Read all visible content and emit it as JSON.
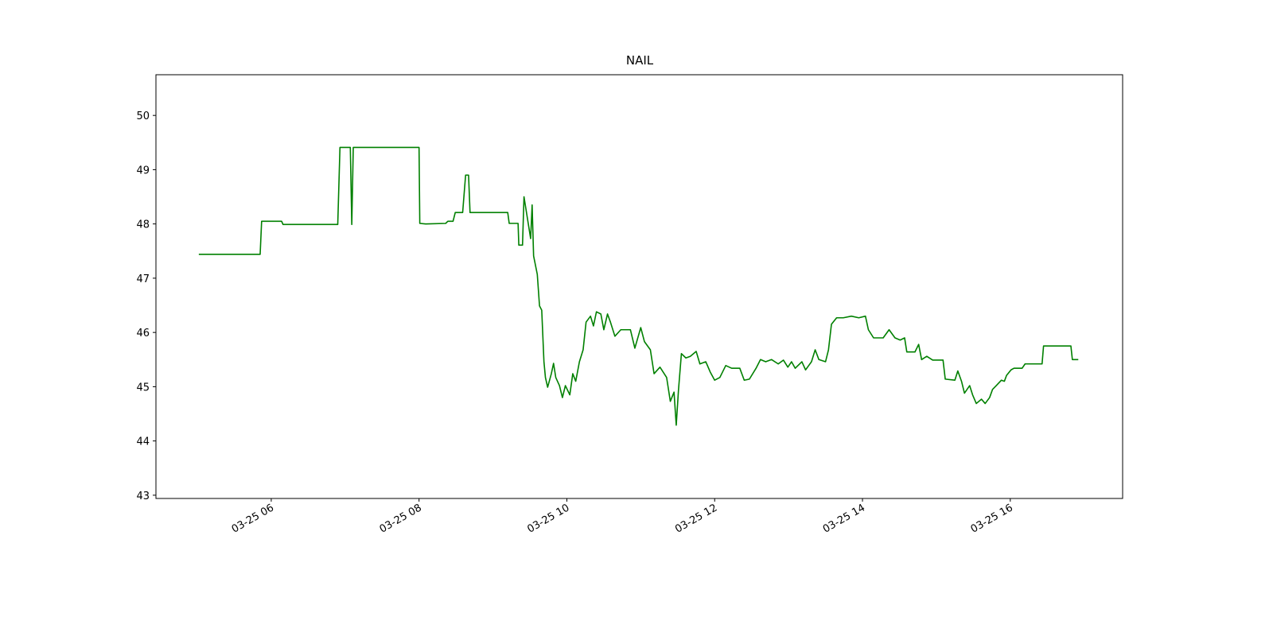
{
  "chart_data": {
    "type": "line",
    "title": "NAIL",
    "color": "#008000",
    "x": [
      5.02,
      5.85,
      5.87,
      6.14,
      6.16,
      6.9,
      6.93,
      7.07,
      7.09,
      7.11,
      8.0,
      8.01,
      8.09,
      8.36,
      8.39,
      8.46,
      8.49,
      8.59,
      8.63,
      8.67,
      8.69,
      9.2,
      9.22,
      9.34,
      9.35,
      9.4,
      9.42,
      9.51,
      9.53,
      9.55,
      9.6,
      9.63,
      9.66,
      9.69,
      9.71,
      9.74,
      9.79,
      9.82,
      9.85,
      9.9,
      9.94,
      9.98,
      10.04,
      10.08,
      10.12,
      10.17,
      10.22,
      10.26,
      10.32,
      10.36,
      10.4,
      10.46,
      10.5,
      10.55,
      10.59,
      10.65,
      10.73,
      10.86,
      10.92,
      11.0,
      11.05,
      11.13,
      11.18,
      11.26,
      11.35,
      11.4,
      11.45,
      11.48,
      11.51,
      11.55,
      11.61,
      11.67,
      11.75,
      11.8,
      11.88,
      11.94,
      12.0,
      12.07,
      12.15,
      12.23,
      12.34,
      12.4,
      12.47,
      12.56,
      12.62,
      12.69,
      12.77,
      12.86,
      12.93,
      12.99,
      13.04,
      13.09,
      13.18,
      13.23,
      13.31,
      13.36,
      13.41,
      13.5,
      13.54,
      13.58,
      13.65,
      13.74,
      13.85,
      13.95,
      14.04,
      14.08,
      14.15,
      14.28,
      14.36,
      14.44,
      14.51,
      14.57,
      14.6,
      14.71,
      14.76,
      14.8,
      14.87,
      14.95,
      15.09,
      15.12,
      15.25,
      15.29,
      15.34,
      15.38,
      15.45,
      15.49,
      15.54,
      15.61,
      15.66,
      15.72,
      15.76,
      15.81,
      15.88,
      15.92,
      15.95,
      16.01,
      16.05,
      16.16,
      16.2,
      16.43,
      16.45,
      16.82,
      16.84,
      16.92
    ],
    "values": [
      47.44,
      47.44,
      48.05,
      48.05,
      47.99,
      47.99,
      49.41,
      49.41,
      47.99,
      49.41,
      49.41,
      48.01,
      48.0,
      48.01,
      48.05,
      48.05,
      48.21,
      48.21,
      48.9,
      48.9,
      48.21,
      48.21,
      48.01,
      48.01,
      47.61,
      47.61,
      48.5,
      47.73,
      48.35,
      47.41,
      47.07,
      46.49,
      46.41,
      45.46,
      45.17,
      44.99,
      45.24,
      45.43,
      45.17,
      45.02,
      44.8,
      45.02,
      44.85,
      45.24,
      45.1,
      45.46,
      45.68,
      46.19,
      46.3,
      46.12,
      46.38,
      46.34,
      46.05,
      46.34,
      46.19,
      45.93,
      46.05,
      46.05,
      45.71,
      46.09,
      45.83,
      45.68,
      45.24,
      45.36,
      45.17,
      44.73,
      44.9,
      44.29,
      44.93,
      45.61,
      45.53,
      45.56,
      45.65,
      45.42,
      45.46,
      45.27,
      45.12,
      45.17,
      45.39,
      45.34,
      45.34,
      45.12,
      45.14,
      45.34,
      45.5,
      45.46,
      45.5,
      45.42,
      45.49,
      45.36,
      45.46,
      45.34,
      45.46,
      45.31,
      45.46,
      45.68,
      45.5,
      45.46,
      45.68,
      46.15,
      46.27,
      46.27,
      46.3,
      46.27,
      46.3,
      46.05,
      45.9,
      45.9,
      46.05,
      45.9,
      45.86,
      45.9,
      45.64,
      45.64,
      45.78,
      45.5,
      45.56,
      45.49,
      45.49,
      45.14,
      45.12,
      45.29,
      45.1,
      44.88,
      45.02,
      44.85,
      44.69,
      44.77,
      44.69,
      44.8,
      44.95,
      45.02,
      45.12,
      45.1,
      45.21,
      45.31,
      45.34,
      45.34,
      45.42,
      45.42,
      45.75,
      45.75,
      45.5,
      45.5
    ],
    "xlim": [
      4.44,
      17.52
    ],
    "ylim": [
      42.94,
      50.75
    ],
    "xticks": [
      {
        "value": 6,
        "label": "03-25 06"
      },
      {
        "value": 8,
        "label": "03-25 08"
      },
      {
        "value": 10,
        "label": "03-25 10"
      },
      {
        "value": 12,
        "label": "03-25 12"
      },
      {
        "value": 14,
        "label": "03-25 14"
      },
      {
        "value": 16,
        "label": "03-25 16"
      }
    ],
    "yticks": [
      43,
      44,
      45,
      46,
      47,
      48,
      49,
      50
    ]
  }
}
